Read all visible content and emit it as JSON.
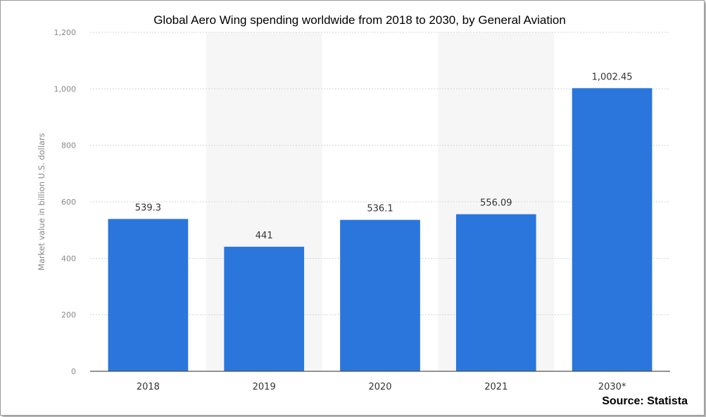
{
  "chart_data": {
    "type": "bar",
    "title": "Global Aero Wing spending worldwide from 2018 to 2030, by General Aviation",
    "ylabel": "Market value in billion U.S. dollars",
    "xlabel": "",
    "categories": [
      "2018",
      "2019",
      "2020",
      "2021",
      "2030*"
    ],
    "values": [
      539.3,
      441,
      536.1,
      556.09,
      1002.45
    ],
    "value_labels": [
      "539.3",
      "441",
      "536.1",
      "556.09",
      "1,002.45"
    ],
    "ylim": [
      0,
      1200
    ],
    "yticks": [
      0,
      200,
      400,
      600,
      800,
      1000,
      1200
    ],
    "ytick_labels": [
      "0",
      "200",
      "400",
      "600",
      "800",
      "1,000",
      "1,200"
    ],
    "grid": true,
    "bar_color": "#2a76dd"
  },
  "source": "Source: Statista"
}
